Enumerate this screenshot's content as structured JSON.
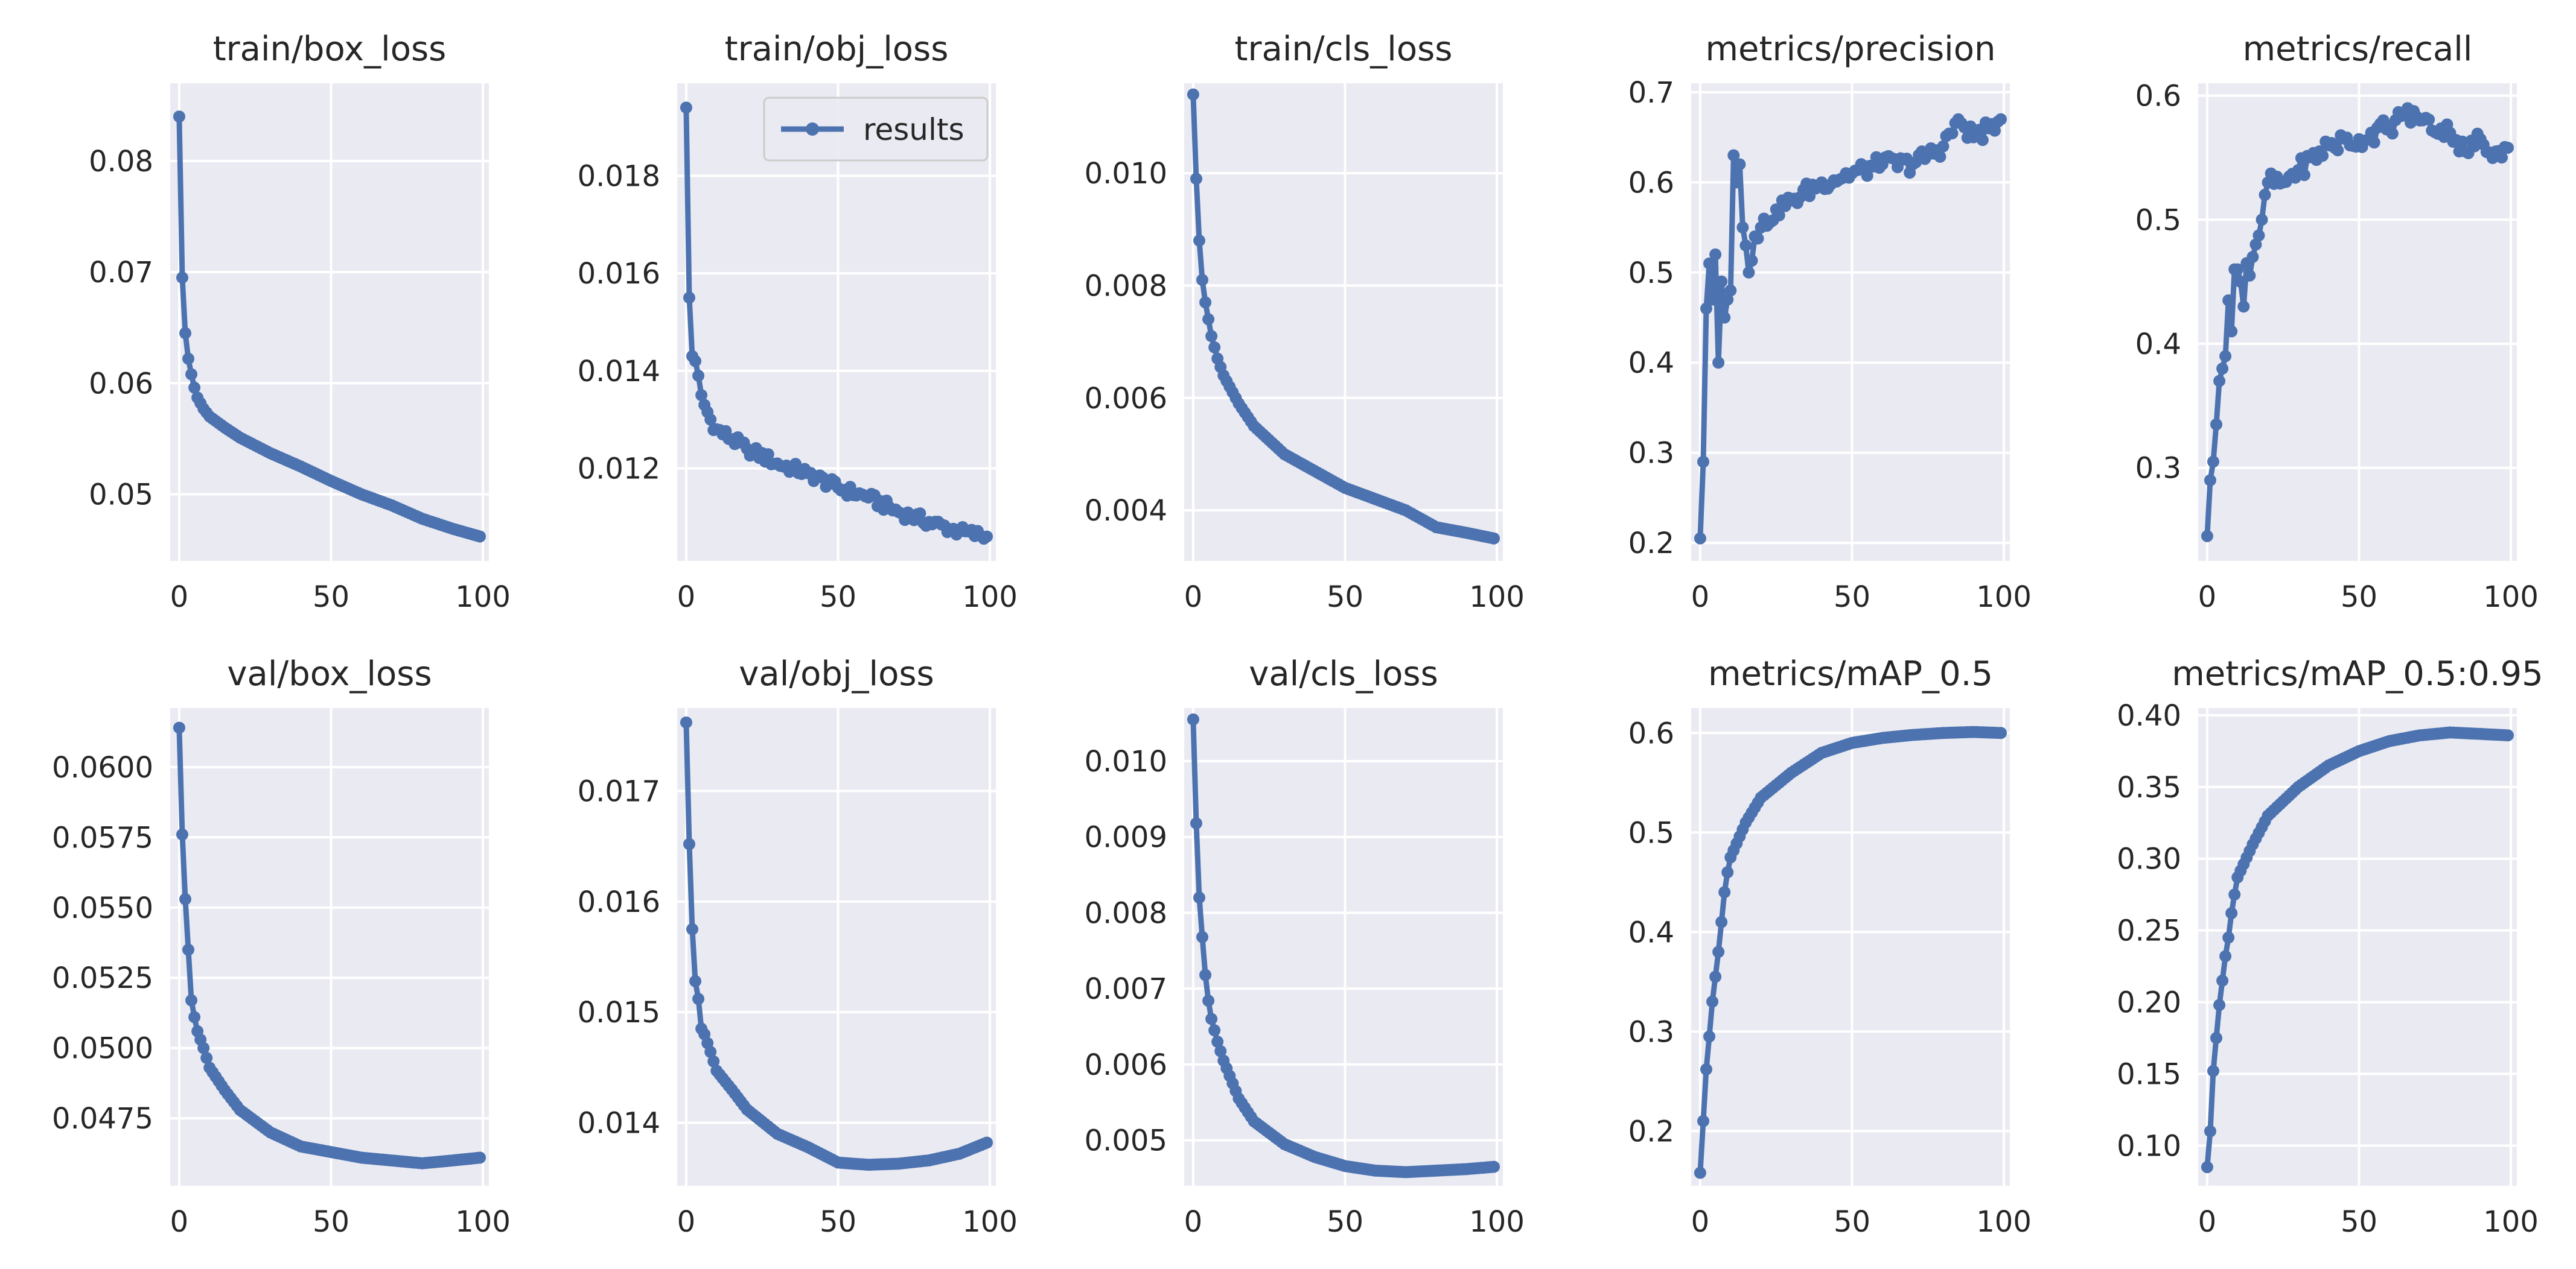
{
  "colors": {
    "plot_bg": "#EAEAF2",
    "grid": "#FFFFFF",
    "line": "#4C72B0",
    "text": "#262626",
    "legend_border": "#CCCCCC"
  },
  "legend": {
    "label": "results",
    "placement": "top-right of train/obj_loss"
  },
  "chart_data": [
    {
      "type": "line",
      "title": "train/box_loss",
      "xlim": [
        0,
        99
      ],
      "ylim": [
        0.044,
        0.087
      ],
      "xticks": [
        0,
        50,
        100
      ],
      "xtick_labels": [
        "0",
        "50",
        "100"
      ],
      "yticks": [
        0.05,
        0.06,
        0.07,
        0.08
      ],
      "ytick_labels": [
        "0.05",
        "0.06",
        "0.07",
        "0.08"
      ],
      "keypoints": [
        [
          0,
          0.084
        ],
        [
          1,
          0.0695
        ],
        [
          2,
          0.0645
        ],
        [
          3,
          0.0622
        ],
        [
          4,
          0.0608
        ],
        [
          5,
          0.0596
        ],
        [
          6,
          0.0587
        ],
        [
          8,
          0.0577
        ],
        [
          10,
          0.057
        ],
        [
          15,
          0.056
        ],
        [
          20,
          0.0551
        ],
        [
          30,
          0.0537
        ],
        [
          40,
          0.0525
        ],
        [
          50,
          0.0512
        ],
        [
          60,
          0.05
        ],
        [
          70,
          0.049
        ],
        [
          80,
          0.0478
        ],
        [
          90,
          0.0469
        ],
        [
          99,
          0.0462
        ]
      ],
      "series": [
        {
          "name": "results"
        }
      ]
    },
    {
      "type": "line",
      "title": "train/obj_loss",
      "xlim": [
        0,
        99
      ],
      "ylim": [
        0.0101,
        0.0199
      ],
      "xticks": [
        0,
        50,
        100
      ],
      "xtick_labels": [
        "0",
        "50",
        "100"
      ],
      "yticks": [
        0.012,
        0.014,
        0.016,
        0.018
      ],
      "ytick_labels": [
        "0.012",
        "0.014",
        "0.016",
        "0.018"
      ],
      "keypoints": [
        [
          0,
          0.0194
        ],
        [
          1,
          0.0155
        ],
        [
          2,
          0.0143
        ],
        [
          3,
          0.0142
        ],
        [
          4,
          0.0139
        ],
        [
          5,
          0.0135
        ],
        [
          6,
          0.0133
        ],
        [
          8,
          0.013
        ],
        [
          10,
          0.0128
        ],
        [
          15,
          0.0126
        ],
        [
          20,
          0.0124
        ],
        [
          30,
          0.0121
        ],
        [
          40,
          0.0119
        ],
        [
          50,
          0.0116
        ],
        [
          60,
          0.0114
        ],
        [
          70,
          0.0111
        ],
        [
          80,
          0.0109
        ],
        [
          90,
          0.0107
        ],
        [
          99,
          0.0106
        ]
      ],
      "noise": 0.00012,
      "series": [
        {
          "name": "results"
        }
      ]
    },
    {
      "type": "line",
      "title": "train/cls_loss",
      "xlim": [
        0,
        99
      ],
      "ylim": [
        0.0031,
        0.0116
      ],
      "xticks": [
        0,
        50,
        100
      ],
      "xtick_labels": [
        "0",
        "50",
        "100"
      ],
      "yticks": [
        0.004,
        0.006,
        0.008,
        0.01
      ],
      "ytick_labels": [
        "0.004",
        "0.006",
        "0.008",
        "0.010"
      ],
      "keypoints": [
        [
          0,
          0.0114
        ],
        [
          1,
          0.0099
        ],
        [
          2,
          0.0088
        ],
        [
          3,
          0.0081
        ],
        [
          4,
          0.0077
        ],
        [
          5,
          0.0074
        ],
        [
          6,
          0.0071
        ],
        [
          8,
          0.0067
        ],
        [
          10,
          0.0064
        ],
        [
          15,
          0.0059
        ],
        [
          20,
          0.0055
        ],
        [
          30,
          0.005
        ],
        [
          40,
          0.0047
        ],
        [
          50,
          0.0044
        ],
        [
          60,
          0.0042
        ],
        [
          70,
          0.004
        ],
        [
          80,
          0.0037
        ],
        [
          90,
          0.0036
        ],
        [
          99,
          0.0035
        ]
      ],
      "series": [
        {
          "name": "results"
        }
      ]
    },
    {
      "type": "line",
      "title": "metrics/precision",
      "xlim": [
        0,
        99
      ],
      "ylim": [
        0.18,
        0.71
      ],
      "xticks": [
        0,
        50,
        100
      ],
      "xtick_labels": [
        "0",
        "50",
        "100"
      ],
      "yticks": [
        0.2,
        0.3,
        0.4,
        0.5,
        0.6,
        0.7
      ],
      "ytick_labels": [
        "0.2",
        "0.3",
        "0.4",
        "0.5",
        "0.6",
        "0.7"
      ],
      "keypoints": [
        [
          0,
          0.205
        ],
        [
          1,
          0.29
        ],
        [
          2,
          0.46
        ],
        [
          3,
          0.51
        ],
        [
          4,
          0.47
        ],
        [
          5,
          0.52
        ],
        [
          6,
          0.4
        ],
        [
          7,
          0.49
        ],
        [
          8,
          0.45
        ],
        [
          9,
          0.47
        ],
        [
          10,
          0.48
        ],
        [
          11,
          0.63
        ],
        [
          12,
          0.6
        ],
        [
          13,
          0.62
        ],
        [
          14,
          0.55
        ],
        [
          15,
          0.53
        ],
        [
          16,
          0.5
        ],
        [
          18,
          0.54
        ],
        [
          20,
          0.55
        ],
        [
          25,
          0.57
        ],
        [
          30,
          0.58
        ],
        [
          40,
          0.6
        ],
        [
          50,
          0.61
        ],
        [
          60,
          0.62
        ],
        [
          70,
          0.62
        ],
        [
          80,
          0.64
        ],
        [
          85,
          0.67
        ],
        [
          90,
          0.65
        ],
        [
          95,
          0.66
        ],
        [
          99,
          0.67
        ]
      ],
      "noise": 0.01,
      "series": [
        {
          "name": "results"
        }
      ]
    },
    {
      "type": "line",
      "title": "metrics/recall",
      "xlim": [
        0,
        99
      ],
      "ylim": [
        0.225,
        0.61
      ],
      "xticks": [
        0,
        50,
        100
      ],
      "xtick_labels": [
        "0",
        "50",
        "100"
      ],
      "yticks": [
        0.3,
        0.4,
        0.5,
        0.6
      ],
      "ytick_labels": [
        "0.3",
        "0.4",
        "0.5",
        "0.6"
      ],
      "keypoints": [
        [
          0,
          0.245
        ],
        [
          1,
          0.29
        ],
        [
          2,
          0.305
        ],
        [
          3,
          0.335
        ],
        [
          4,
          0.37
        ],
        [
          5,
          0.38
        ],
        [
          6,
          0.39
        ],
        [
          7,
          0.435
        ],
        [
          8,
          0.41
        ],
        [
          9,
          0.46
        ],
        [
          10,
          0.46
        ],
        [
          11,
          0.45
        ],
        [
          12,
          0.43
        ],
        [
          13,
          0.465
        ],
        [
          14,
          0.455
        ],
        [
          15,
          0.47
        ],
        [
          16,
          0.48
        ],
        [
          18,
          0.5
        ],
        [
          20,
          0.53
        ],
        [
          25,
          0.53
        ],
        [
          30,
          0.54
        ],
        [
          40,
          0.56
        ],
        [
          50,
          0.565
        ],
        [
          60,
          0.575
        ],
        [
          65,
          0.585
        ],
        [
          70,
          0.58
        ],
        [
          80,
          0.57
        ],
        [
          85,
          0.555
        ],
        [
          90,
          0.565
        ],
        [
          95,
          0.555
        ],
        [
          99,
          0.558
        ]
      ],
      "noise": 0.008,
      "series": [
        {
          "name": "results"
        }
      ]
    },
    {
      "type": "line",
      "title": "val/box_loss",
      "xlim": [
        0,
        99
      ],
      "ylim": [
        0.0451,
        0.0621
      ],
      "xticks": [
        0,
        50,
        100
      ],
      "xtick_labels": [
        "0",
        "50",
        "100"
      ],
      "yticks": [
        0.0475,
        0.05,
        0.0525,
        0.055,
        0.0575,
        0.06
      ],
      "ytick_labels": [
        "0.0475",
        "0.0500",
        "0.0525",
        "0.0550",
        "0.0575",
        "0.0600"
      ],
      "keypoints": [
        [
          0,
          0.0614
        ],
        [
          1,
          0.0576
        ],
        [
          2,
          0.0553
        ],
        [
          3,
          0.0535
        ],
        [
          4,
          0.0517
        ],
        [
          5,
          0.0511
        ],
        [
          6,
          0.0506
        ],
        [
          8,
          0.05
        ],
        [
          10,
          0.0493
        ],
        [
          15,
          0.0485
        ],
        [
          20,
          0.0478
        ],
        [
          30,
          0.047
        ],
        [
          40,
          0.0465
        ],
        [
          50,
          0.0463
        ],
        [
          60,
          0.0461
        ],
        [
          70,
          0.046
        ],
        [
          80,
          0.0459
        ],
        [
          90,
          0.046
        ],
        [
          99,
          0.0461
        ]
      ],
      "series": [
        {
          "name": "results"
        }
      ]
    },
    {
      "type": "line",
      "title": "val/obj_loss",
      "xlim": [
        0,
        99
      ],
      "ylim": [
        0.01343,
        0.01775
      ],
      "xticks": [
        0,
        50,
        100
      ],
      "xtick_labels": [
        "0",
        "50",
        "100"
      ],
      "yticks": [
        0.014,
        0.015,
        0.016,
        0.017
      ],
      "ytick_labels": [
        "0.014",
        "0.015",
        "0.016",
        "0.017"
      ],
      "keypoints": [
        [
          0,
          0.01762
        ],
        [
          1,
          0.01652
        ],
        [
          2,
          0.01575
        ],
        [
          3,
          0.01528
        ],
        [
          4,
          0.01512
        ],
        [
          5,
          0.01485
        ],
        [
          6,
          0.0148
        ],
        [
          8,
          0.01464
        ],
        [
          10,
          0.01447
        ],
        [
          15,
          0.0143
        ],
        [
          20,
          0.01412
        ],
        [
          30,
          0.0139
        ],
        [
          40,
          0.01378
        ],
        [
          50,
          0.01364
        ],
        [
          60,
          0.01362
        ],
        [
          70,
          0.01363
        ],
        [
          80,
          0.01366
        ],
        [
          90,
          0.01372
        ],
        [
          99,
          0.01382
        ]
      ],
      "series": [
        {
          "name": "results"
        }
      ]
    },
    {
      "type": "line",
      "title": "val/cls_loss",
      "xlim": [
        0,
        99
      ],
      "ylim": [
        0.0044,
        0.0107
      ],
      "xticks": [
        0,
        50,
        100
      ],
      "xtick_labels": [
        "0",
        "50",
        "100"
      ],
      "yticks": [
        0.005,
        0.006,
        0.007,
        0.008,
        0.009,
        0.01
      ],
      "ytick_labels": [
        "0.005",
        "0.006",
        "0.007",
        "0.008",
        "0.009",
        "0.010"
      ],
      "keypoints": [
        [
          0,
          0.01055
        ],
        [
          1,
          0.00918
        ],
        [
          2,
          0.0082
        ],
        [
          3,
          0.00768
        ],
        [
          4,
          0.00718
        ],
        [
          5,
          0.00684
        ],
        [
          6,
          0.0066
        ],
        [
          8,
          0.0063
        ],
        [
          10,
          0.00605
        ],
        [
          15,
          0.00555
        ],
        [
          20,
          0.00525
        ],
        [
          30,
          0.00495
        ],
        [
          40,
          0.00478
        ],
        [
          50,
          0.00466
        ],
        [
          60,
          0.0046
        ],
        [
          70,
          0.00458
        ],
        [
          80,
          0.0046
        ],
        [
          90,
          0.00462
        ],
        [
          99,
          0.00465
        ]
      ],
      "series": [
        {
          "name": "results"
        }
      ]
    },
    {
      "type": "line",
      "title": "metrics/mAP_0.5",
      "xlim": [
        0,
        99
      ],
      "ylim": [
        0.145,
        0.625
      ],
      "xticks": [
        0,
        50,
        100
      ],
      "xtick_labels": [
        "0",
        "50",
        "100"
      ],
      "yticks": [
        0.2,
        0.3,
        0.4,
        0.5,
        0.6
      ],
      "ytick_labels": [
        "0.2",
        "0.3",
        "0.4",
        "0.5",
        "0.6"
      ],
      "keypoints": [
        [
          0,
          0.158
        ],
        [
          1,
          0.21
        ],
        [
          2,
          0.262
        ],
        [
          3,
          0.295
        ],
        [
          4,
          0.33
        ],
        [
          5,
          0.355
        ],
        [
          6,
          0.38
        ],
        [
          7,
          0.41
        ],
        [
          8,
          0.44
        ],
        [
          9,
          0.46
        ],
        [
          10,
          0.475
        ],
        [
          15,
          0.51
        ],
        [
          20,
          0.535
        ],
        [
          30,
          0.56
        ],
        [
          40,
          0.58
        ],
        [
          50,
          0.59
        ],
        [
          60,
          0.595
        ],
        [
          70,
          0.598
        ],
        [
          80,
          0.6
        ],
        [
          90,
          0.601
        ],
        [
          99,
          0.6
        ]
      ],
      "series": [
        {
          "name": "results"
        }
      ]
    },
    {
      "type": "line",
      "title": "metrics/mAP_0.5:0.95",
      "xlim": [
        0,
        99
      ],
      "ylim": [
        0.072,
        0.405
      ],
      "xticks": [
        0,
        50,
        100
      ],
      "xtick_labels": [
        "0",
        "50",
        "100"
      ],
      "yticks": [
        0.1,
        0.15,
        0.2,
        0.25,
        0.3,
        0.35,
        0.4
      ],
      "ytick_labels": [
        "0.10",
        "0.15",
        "0.20",
        "0.25",
        "0.30",
        "0.35",
        "0.40"
      ],
      "keypoints": [
        [
          0,
          0.085
        ],
        [
          1,
          0.11
        ],
        [
          2,
          0.152
        ],
        [
          3,
          0.175
        ],
        [
          4,
          0.198
        ],
        [
          5,
          0.215
        ],
        [
          6,
          0.232
        ],
        [
          7,
          0.245
        ],
        [
          8,
          0.262
        ],
        [
          9,
          0.275
        ],
        [
          10,
          0.287
        ],
        [
          15,
          0.31
        ],
        [
          20,
          0.33
        ],
        [
          30,
          0.35
        ],
        [
          40,
          0.365
        ],
        [
          50,
          0.375
        ],
        [
          60,
          0.382
        ],
        [
          70,
          0.386
        ],
        [
          80,
          0.388
        ],
        [
          90,
          0.387
        ],
        [
          99,
          0.386
        ]
      ],
      "series": [
        {
          "name": "results"
        }
      ]
    }
  ]
}
